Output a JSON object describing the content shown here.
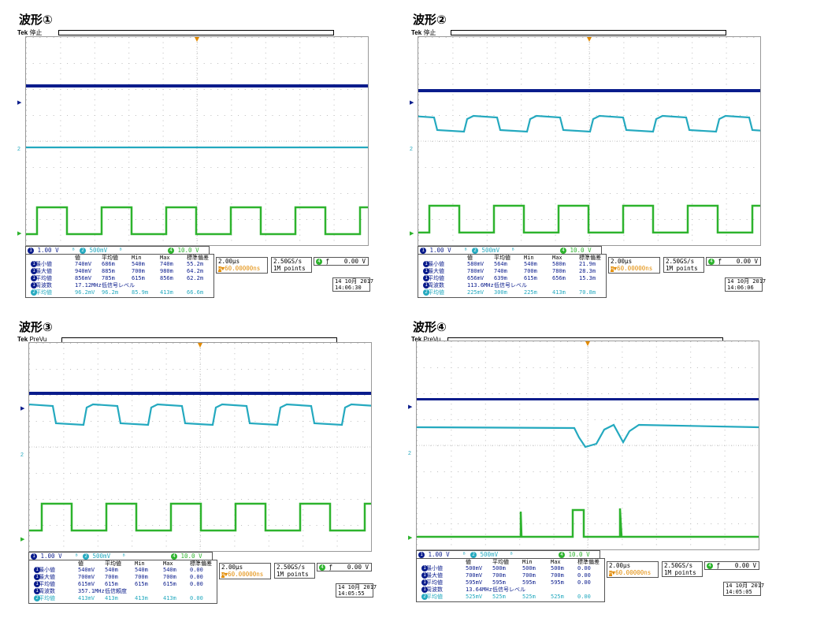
{
  "panels": [
    {
      "title": "波形①",
      "state": "停止",
      "scale1": "1.00 V",
      "scale2": "500mV",
      "scale4": "10.0 V",
      "timebase": "2.00µs",
      "delay": "▼60.00000ns",
      "sample_rate": "2.50GS/s",
      "points": "1M points",
      "trigger_level": "0.00 V",
      "date": "14 10月 2017",
      "time": "14:06:30",
      "meas_header": [
        "値",
        "平均値",
        "Min",
        "Max",
        "標準偏差"
      ],
      "meas_rows": [
        {
          "ch": "1",
          "label": "最小値",
          "v": [
            "740mV",
            "686m",
            "540m",
            "740m",
            "55.2m"
          ]
        },
        {
          "ch": "1",
          "label": "最大値",
          "v": [
            "940mV",
            "885m",
            "700m",
            "980m",
            "64.2m"
          ]
        },
        {
          "ch": "1",
          "label": "平均値",
          "v": [
            "856mV",
            "785m",
            "615m",
            "856m",
            "62.2m"
          ]
        },
        {
          "ch": "1",
          "label": "周波数",
          "v": [
            "17.12MHz",
            "低信号レベル",
            "",
            "",
            ""
          ]
        },
        {
          "ch": "2",
          "label": "平均値",
          "v": [
            "96.2mV",
            "96.2m",
            "85.9m",
            "413m",
            "66.6m"
          ]
        }
      ]
    },
    {
      "title": "波形②",
      "state": "停止",
      "scale1": "1.00 V",
      "scale2": "500mV",
      "scale4": "10.0 V",
      "timebase": "2.00µs",
      "delay": "▼60.00000ns",
      "sample_rate": "2.50GS/s",
      "points": "1M points",
      "trigger_level": "0.00 V",
      "date": "14 10月 2017",
      "time": "14:06:06",
      "meas_header": [
        "値",
        "平均値",
        "Min",
        "Max",
        "標準偏差"
      ],
      "meas_rows": [
        {
          "ch": "1",
          "label": "最小値",
          "v": [
            "580mV",
            "564m",
            "540m",
            "580m",
            "21.9m"
          ]
        },
        {
          "ch": "1",
          "label": "最大値",
          "v": [
            "780mV",
            "740m",
            "700m",
            "780m",
            "28.3m"
          ]
        },
        {
          "ch": "1",
          "label": "平均値",
          "v": [
            "656mV",
            "639m",
            "615m",
            "656m",
            "15.3m"
          ]
        },
        {
          "ch": "1",
          "label": "周波数",
          "v": [
            "113.6MHz",
            "低信号レベル",
            "",
            "",
            ""
          ]
        },
        {
          "ch": "2",
          "label": "平均値",
          "v": [
            "225mV",
            "300m",
            "225m",
            "413m",
            "70.8m"
          ]
        }
      ]
    },
    {
      "title": "波形③",
      "state": "PreVu",
      "scale1": "1.00 V",
      "scale2": "500mV",
      "scale4": "10.0 V",
      "timebase": "2.00µs",
      "delay": "▼60.00000ns",
      "sample_rate": "2.50GS/s",
      "points": "1M points",
      "trigger_level": "0.00 V",
      "date": "14 10月 2017",
      "time": "14:05:55",
      "meas_header": [
        "値",
        "平均値",
        "Min",
        "Max",
        "標準偏差"
      ],
      "meas_rows": [
        {
          "ch": "1",
          "label": "最小値",
          "v": [
            "540mV",
            "540m",
            "540m",
            "540m",
            "0.00"
          ]
        },
        {
          "ch": "1",
          "label": "最大値",
          "v": [
            "700mV",
            "700m",
            "700m",
            "700m",
            "0.00"
          ]
        },
        {
          "ch": "1",
          "label": "平均値",
          "v": [
            "615mV",
            "615m",
            "615m",
            "615m",
            "0.00"
          ]
        },
        {
          "ch": "1",
          "label": "周波数",
          "v": [
            "357.1MHz",
            "低信頼度",
            "",
            "",
            ""
          ]
        },
        {
          "ch": "2",
          "label": "平均値",
          "v": [
            "413mV",
            "413m",
            "413m",
            "413m",
            "0.00"
          ]
        }
      ]
    },
    {
      "title": "波形④",
      "state": "PreVu",
      "scale1": "1.00 V",
      "scale2": "500mV",
      "scale4": "10.0 V",
      "timebase": "2.00µs",
      "delay": "▼60.00000ns",
      "sample_rate": "2.50GS/s",
      "points": "1M points",
      "trigger_level": "0.00 V",
      "date": "14 10月 2017",
      "time": "14:05:05",
      "meas_header": [
        "値",
        "平均値",
        "Min",
        "Max",
        "標準偏差"
      ],
      "meas_rows": [
        {
          "ch": "1",
          "label": "最小値",
          "v": [
            "500mV",
            "500m",
            "500m",
            "500m",
            "0.00"
          ]
        },
        {
          "ch": "1",
          "label": "最大値",
          "v": [
            "700mV",
            "700m",
            "700m",
            "700m",
            "0.00"
          ]
        },
        {
          "ch": "1",
          "label": "平均値",
          "v": [
            "595mV",
            "595m",
            "595m",
            "595m",
            "0.00"
          ]
        },
        {
          "ch": "1",
          "label": "周波数",
          "v": [
            "13.64MHz",
            "低信号レベル",
            "",
            "",
            ""
          ]
        },
        {
          "ch": "2",
          "label": "平均値",
          "v": [
            "525mV",
            "525m",
            "525m",
            "525m",
            "0.00"
          ]
        }
      ]
    }
  ],
  "brand": "Tek",
  "colors": {
    "ch1": "#0a1c8c",
    "ch2": "#24a9bf",
    "ch4": "#2db32d",
    "trigger": "#e28a00"
  }
}
